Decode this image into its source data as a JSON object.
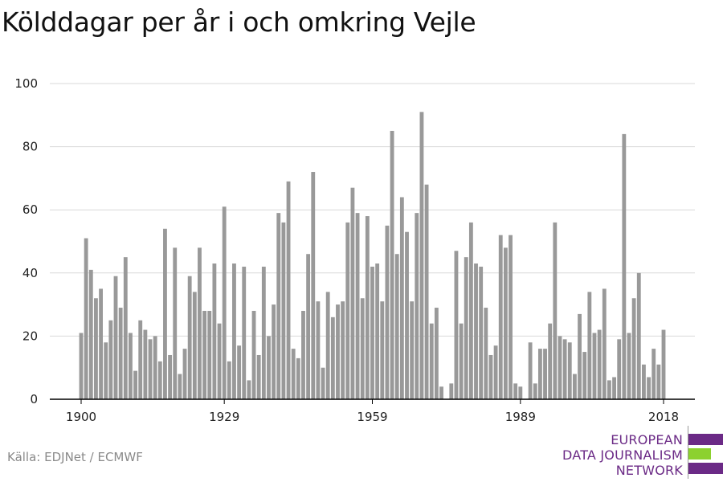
{
  "title": "Kölddagar per år i och omkring Vejle",
  "source": "Källa: EDJNet / ECMWF",
  "logo": {
    "lines": [
      "EUROPEAN",
      "DATA JOURNALISM",
      "NETWORK"
    ],
    "colors": [
      "#6b2a86",
      "#8cd12f",
      "#6b2a86"
    ]
  },
  "colors": {
    "bar": "#999999",
    "grid": "#d9d9d9",
    "axis": "#000000"
  },
  "chart_data": {
    "type": "bar",
    "title": "Kölddagar per år i och omkring Vejle",
    "x_start": 1900,
    "x_end": 2018,
    "xticks": [
      1900,
      1929,
      1959,
      1989,
      2018
    ],
    "yticks": [
      0,
      20,
      40,
      60,
      80,
      100
    ],
    "ylim": [
      0,
      100
    ],
    "grid": true,
    "values": [
      21,
      51,
      41,
      32,
      35,
      18,
      25,
      39,
      29,
      45,
      21,
      9,
      25,
      22,
      19,
      20,
      12,
      54,
      14,
      48,
      8,
      16,
      39,
      34,
      48,
      28,
      28,
      43,
      24,
      61,
      12,
      43,
      17,
      42,
      6,
      28,
      14,
      42,
      20,
      30,
      59,
      56,
      69,
      16,
      13,
      28,
      46,
      72,
      31,
      10,
      34,
      26,
      30,
      31,
      56,
      67,
      59,
      32,
      58,
      42,
      43,
      31,
      55,
      85,
      46,
      64,
      53,
      31,
      59,
      91,
      68,
      24,
      29,
      4,
      0,
      5,
      47,
      24,
      45,
      56,
      43,
      42,
      29,
      14,
      17,
      52,
      48,
      52,
      5,
      4,
      0,
      18,
      5,
      16,
      16,
      24,
      56,
      20,
      19,
      18,
      8,
      27,
      15,
      34,
      21,
      22,
      35,
      6,
      7,
      19,
      84,
      21,
      32,
      40,
      11,
      7,
      16,
      11,
      22
    ]
  }
}
